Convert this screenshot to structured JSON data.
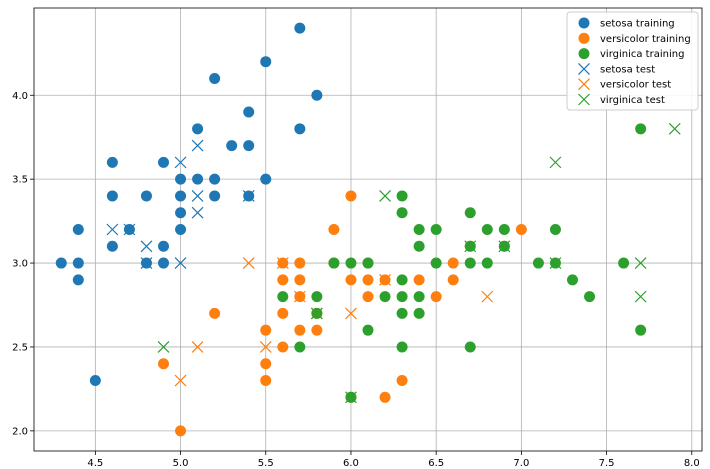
{
  "chart_data": {
    "type": "scatter",
    "xlim": [
      4.14,
      8.06
    ],
    "ylim": [
      1.88,
      4.52
    ],
    "grid": true,
    "legend_position": "top-right",
    "x_ticks": [
      "4.5",
      "5.0",
      "5.5",
      "6.0",
      "6.5",
      "7.0",
      "7.5",
      "8.0"
    ],
    "x_tick_values": [
      4.5,
      5.0,
      5.5,
      6.0,
      6.5,
      7.0,
      7.5,
      8.0
    ],
    "y_ticks": [
      "2.0",
      "2.5",
      "3.0",
      "3.5",
      "4.0"
    ],
    "y_tick_values": [
      2.0,
      2.5,
      3.0,
      3.5,
      4.0
    ],
    "series": [
      {
        "name": "setosa training",
        "marker": "circle",
        "color": "#1f77b4",
        "points": [
          [
            4.3,
            3.0
          ],
          [
            4.4,
            3.2
          ],
          [
            4.4,
            3.0
          ],
          [
            4.4,
            2.9
          ],
          [
            4.5,
            2.3
          ],
          [
            4.6,
            3.6
          ],
          [
            4.6,
            3.4
          ],
          [
            4.6,
            3.1
          ],
          [
            4.7,
            3.2
          ],
          [
            4.8,
            3.4
          ],
          [
            4.8,
            3.0
          ],
          [
            4.9,
            3.6
          ],
          [
            4.9,
            3.1
          ],
          [
            4.9,
            3.0
          ],
          [
            5.0,
            3.5
          ],
          [
            5.0,
            3.4
          ],
          [
            5.0,
            3.3
          ],
          [
            5.0,
            3.2
          ],
          [
            5.1,
            3.8
          ],
          [
            5.1,
            3.5
          ],
          [
            5.2,
            4.1
          ],
          [
            5.2,
            3.5
          ],
          [
            5.2,
            3.4
          ],
          [
            5.3,
            3.7
          ],
          [
            5.4,
            3.9
          ],
          [
            5.4,
            3.7
          ],
          [
            5.4,
            3.4
          ],
          [
            5.5,
            4.2
          ],
          [
            5.5,
            3.5
          ],
          [
            5.7,
            4.4
          ],
          [
            5.7,
            3.8
          ],
          [
            5.8,
            4.0
          ]
        ]
      },
      {
        "name": "versicolor training",
        "marker": "circle",
        "color": "#ff7f0e",
        "points": [
          [
            4.9,
            2.4
          ],
          [
            5.0,
            2.0
          ],
          [
            5.2,
            2.7
          ],
          [
            5.5,
            2.6
          ],
          [
            5.5,
            2.4
          ],
          [
            5.5,
            2.3
          ],
          [
            5.6,
            3.0
          ],
          [
            5.6,
            2.9
          ],
          [
            5.6,
            2.7
          ],
          [
            5.6,
            2.5
          ],
          [
            5.7,
            3.0
          ],
          [
            5.7,
            2.9
          ],
          [
            5.7,
            2.8
          ],
          [
            5.7,
            2.6
          ],
          [
            5.8,
            2.7
          ],
          [
            5.8,
            2.6
          ],
          [
            5.9,
            3.2
          ],
          [
            5.9,
            3.0
          ],
          [
            6.0,
            3.4
          ],
          [
            6.0,
            2.9
          ],
          [
            6.0,
            2.2
          ],
          [
            6.1,
            3.0
          ],
          [
            6.1,
            2.9
          ],
          [
            6.1,
            2.8
          ],
          [
            6.2,
            2.9
          ],
          [
            6.2,
            2.2
          ],
          [
            6.3,
            2.3
          ],
          [
            6.4,
            2.9
          ],
          [
            6.5,
            2.8
          ],
          [
            6.6,
            3.0
          ],
          [
            6.6,
            2.9
          ],
          [
            6.7,
            3.1
          ],
          [
            6.9,
            3.1
          ],
          [
            7.0,
            3.2
          ]
        ]
      },
      {
        "name": "virginica training",
        "marker": "circle",
        "color": "#2ca02c",
        "points": [
          [
            5.6,
            2.8
          ],
          [
            5.7,
            2.5
          ],
          [
            5.8,
            2.8
          ],
          [
            5.8,
            2.7
          ],
          [
            5.9,
            3.0
          ],
          [
            6.0,
            3.0
          ],
          [
            6.0,
            2.2
          ],
          [
            6.1,
            3.0
          ],
          [
            6.1,
            2.6
          ],
          [
            6.2,
            2.8
          ],
          [
            6.3,
            3.4
          ],
          [
            6.3,
            3.3
          ],
          [
            6.3,
            2.9
          ],
          [
            6.3,
            2.8
          ],
          [
            6.3,
            2.7
          ],
          [
            6.3,
            2.5
          ],
          [
            6.4,
            3.2
          ],
          [
            6.4,
            3.1
          ],
          [
            6.4,
            2.8
          ],
          [
            6.4,
            2.7
          ],
          [
            6.5,
            3.2
          ],
          [
            6.5,
            3.0
          ],
          [
            6.7,
            3.3
          ],
          [
            6.7,
            3.1
          ],
          [
            6.7,
            3.0
          ],
          [
            6.7,
            2.5
          ],
          [
            6.8,
            3.2
          ],
          [
            6.8,
            3.0
          ],
          [
            6.9,
            3.2
          ],
          [
            6.9,
            3.1
          ],
          [
            7.1,
            3.0
          ],
          [
            7.2,
            3.2
          ],
          [
            7.2,
            3.0
          ],
          [
            7.3,
            2.9
          ],
          [
            7.4,
            2.8
          ],
          [
            7.6,
            3.0
          ],
          [
            7.7,
            3.8
          ],
          [
            7.7,
            2.6
          ]
        ]
      },
      {
        "name": "setosa test",
        "marker": "x",
        "color": "#1f77b4",
        "points": [
          [
            4.6,
            3.2
          ],
          [
            4.7,
            3.2
          ],
          [
            4.8,
            3.1
          ],
          [
            4.8,
            3.0
          ],
          [
            5.0,
            3.6
          ],
          [
            5.0,
            3.0
          ],
          [
            5.1,
            3.7
          ],
          [
            5.1,
            3.4
          ],
          [
            5.1,
            3.3
          ],
          [
            5.4,
            3.4
          ]
        ]
      },
      {
        "name": "versicolor test",
        "marker": "x",
        "color": "#ff7f0e",
        "points": [
          [
            5.0,
            2.3
          ],
          [
            5.1,
            2.5
          ],
          [
            5.4,
            3.0
          ],
          [
            5.5,
            2.5
          ],
          [
            5.6,
            3.0
          ],
          [
            5.7,
            2.8
          ],
          [
            5.8,
            2.7
          ],
          [
            6.0,
            2.7
          ],
          [
            6.2,
            2.9
          ],
          [
            6.8,
            2.8
          ]
        ]
      },
      {
        "name": "virginica test",
        "marker": "x",
        "color": "#2ca02c",
        "points": [
          [
            4.9,
            2.5
          ],
          [
            5.8,
            2.7
          ],
          [
            6.0,
            2.2
          ],
          [
            6.2,
            3.4
          ],
          [
            6.7,
            3.1
          ],
          [
            6.9,
            3.1
          ],
          [
            7.2,
            3.6
          ],
          [
            7.2,
            3.0
          ],
          [
            7.7,
            3.0
          ],
          [
            7.7,
            2.8
          ],
          [
            7.9,
            3.8
          ]
        ]
      }
    ]
  }
}
